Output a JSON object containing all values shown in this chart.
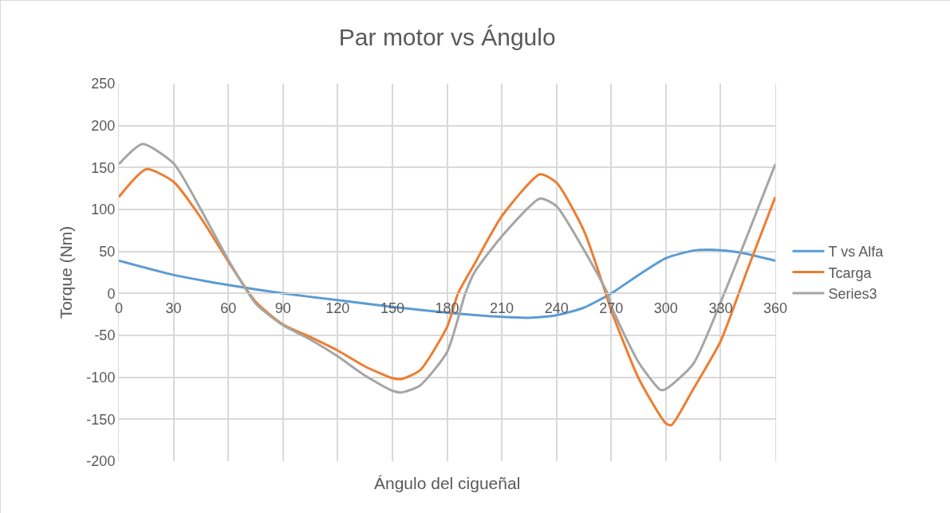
{
  "chart_data": {
    "type": "line",
    "title": "Par motor vs Ángulo",
    "xlabel": "Ángulo del cigueñal",
    "ylabel": "Torque (Nm)",
    "xlim": [
      0,
      360
    ],
    "xticks": [
      0,
      30,
      60,
      90,
      120,
      150,
      180,
      210,
      240,
      270,
      300,
      330,
      360
    ],
    "ylim": [
      -200,
      250
    ],
    "yticks": [
      -200,
      -150,
      -100,
      -50,
      0,
      50,
      100,
      150,
      200,
      250
    ],
    "grid": true,
    "legend": "right",
    "marker": "none",
    "line_style": "solid",
    "series": [
      {
        "name": "T vs Alfa",
        "color": "#5b9bd5",
        "x": [
          0,
          30,
          60,
          90,
          120,
          150,
          180,
          210,
          225,
          240,
          255,
          270,
          285,
          300,
          315,
          325,
          340,
          360
        ],
        "values": [
          39,
          22,
          10,
          0,
          -8,
          -16,
          -23,
          -28,
          -29,
          -26,
          -17,
          0,
          22,
          42,
          51,
          52,
          49,
          39
        ]
      },
      {
        "name": "Tcarga",
        "color": "#ed7d31",
        "x": [
          0,
          15,
          30,
          45,
          60,
          75,
          90,
          105,
          120,
          135,
          150,
          155,
          165,
          180,
          186,
          195,
          210,
          231,
          240,
          255,
          267,
          270,
          285,
          300,
          303,
          315,
          330,
          345,
          360
        ],
        "values": [
          115,
          148,
          133,
          90,
          38,
          -10,
          -37,
          -52,
          -68,
          -87,
          -101,
          -102,
          -92,
          -40,
          0,
          35,
          92,
          142,
          132,
          75,
          0,
          -20,
          -101,
          -155,
          -157,
          -114,
          -57,
          30,
          115
        ]
      },
      {
        "name": "Series3",
        "color": "#a5a5a5",
        "x": [
          0,
          13,
          30,
          45,
          60,
          75,
          90,
          105,
          120,
          135,
          150,
          155,
          165,
          180,
          190,
          195,
          210,
          231,
          240,
          255,
          268,
          270,
          285,
          297,
          300,
          315,
          332,
          345,
          360
        ],
        "values": [
          154,
          178,
          155,
          100,
          40,
          -12,
          -38,
          -55,
          -75,
          -98,
          -116,
          -118,
          -110,
          -70,
          0,
          25,
          68,
          113,
          104,
          52,
          0,
          -15,
          -82,
          -115,
          -114,
          -84,
          0,
          71,
          154
        ]
      }
    ]
  }
}
